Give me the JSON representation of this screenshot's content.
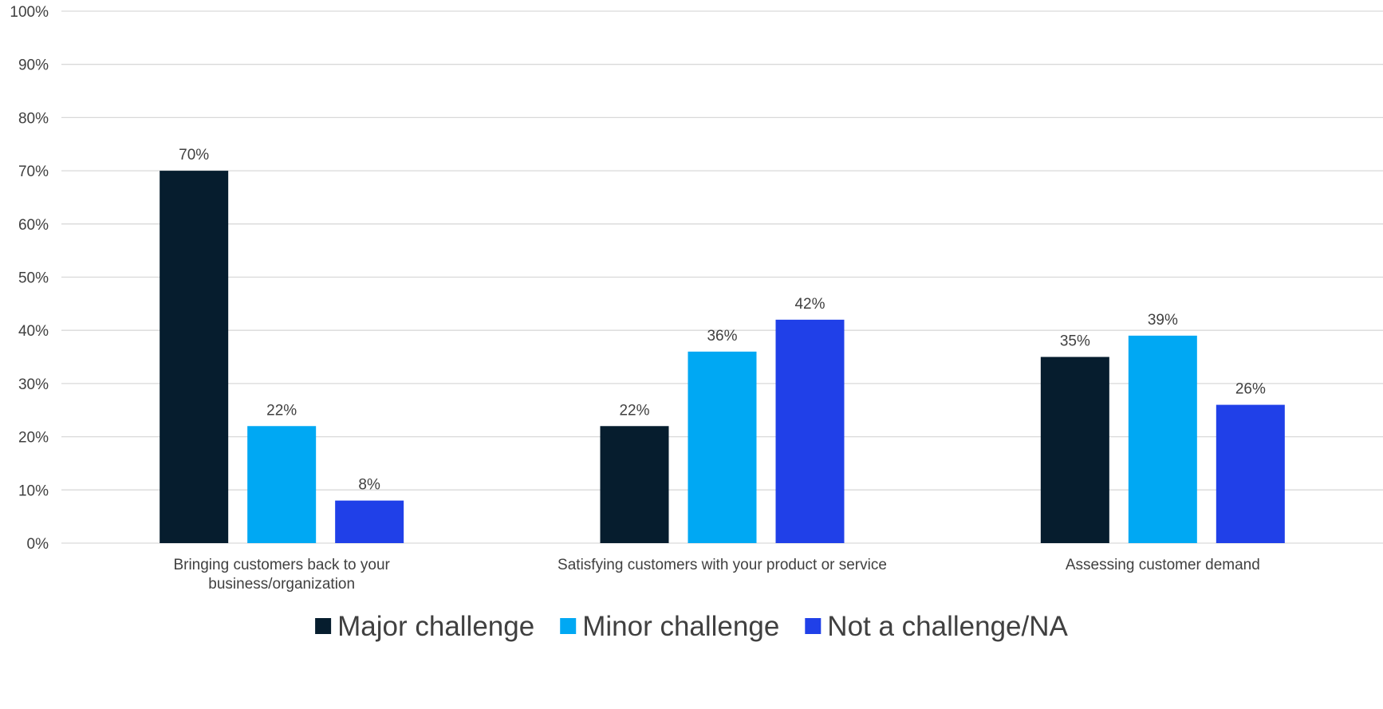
{
  "chart_data": {
    "type": "bar",
    "categories": [
      [
        "Bringing customers back to your",
        "business/organization"
      ],
      [
        "Satisfying customers with your product or service"
      ],
      [
        "Assessing customer demand"
      ]
    ],
    "series": [
      {
        "name": "Major challenge",
        "color": "#061d2e",
        "values": [
          70,
          22,
          35
        ],
        "labels": [
          "70%",
          "22%",
          "35%"
        ]
      },
      {
        "name": "Minor challenge",
        "color": "#00a8f3",
        "values": [
          22,
          36,
          39
        ],
        "labels": [
          "22%",
          "36%",
          "39%"
        ]
      },
      {
        "name": "Not a challenge/NA",
        "color": "#2040e8",
        "values": [
          8,
          42,
          26
        ],
        "labels": [
          "8%",
          "42%",
          "26%"
        ]
      }
    ],
    "ylim": [
      0,
      100
    ],
    "yticks": [
      0,
      10,
      20,
      30,
      40,
      50,
      60,
      70,
      80,
      90,
      100
    ],
    "ytick_labels": [
      "0%",
      "10%",
      "20%",
      "30%",
      "40%",
      "50%",
      "60%",
      "70%",
      "80%",
      "90%",
      "100%"
    ],
    "grid": true,
    "legend_position": "bottom",
    "title": "",
    "xlabel": "",
    "ylabel": ""
  }
}
